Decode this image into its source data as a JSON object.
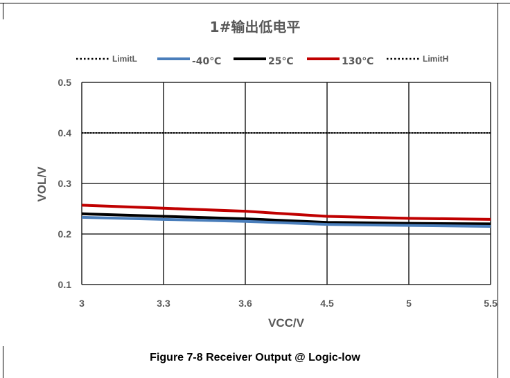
{
  "chart_data": {
    "type": "line",
    "title": "1#输出低电平",
    "xlabel": "VCC/V",
    "ylabel": "VOL/V",
    "categories": [
      "3",
      "3.3",
      "3.6",
      "4.5",
      "5",
      "5.5"
    ],
    "ylim": [
      0.1,
      0.5
    ],
    "yticks": [
      "0.5",
      "0.4",
      "0.3",
      "0.2",
      "0.1"
    ],
    "ytick_values": [
      0.5,
      0.4,
      0.3,
      0.2,
      0.1
    ],
    "grid": true,
    "legend_position": "top",
    "series": [
      {
        "name": "LimitL",
        "values": [
          0.4,
          0.4,
          0.4,
          0.4,
          0.4,
          0.4
        ],
        "color": "#000000",
        "style": "dotted"
      },
      {
        "name": "-40℃",
        "values": [
          0.233,
          0.229,
          0.225,
          0.219,
          0.217,
          0.215
        ],
        "color": "#4a7ebb",
        "style": "solid"
      },
      {
        "name": "25℃",
        "values": [
          0.24,
          0.235,
          0.23,
          0.223,
          0.221,
          0.22
        ],
        "color": "#000000",
        "style": "solid"
      },
      {
        "name": "130℃",
        "values": [
          0.257,
          0.251,
          0.245,
          0.235,
          0.231,
          0.229
        ],
        "color": "#c00000",
        "style": "solid"
      },
      {
        "name": "LimitH",
        "values": [
          0.4,
          0.4,
          0.4,
          0.4,
          0.4,
          0.4
        ],
        "color": "#000000",
        "style": "dotted"
      }
    ]
  },
  "caption": "Figure 7-8  Receiver Output @ Logic-low"
}
